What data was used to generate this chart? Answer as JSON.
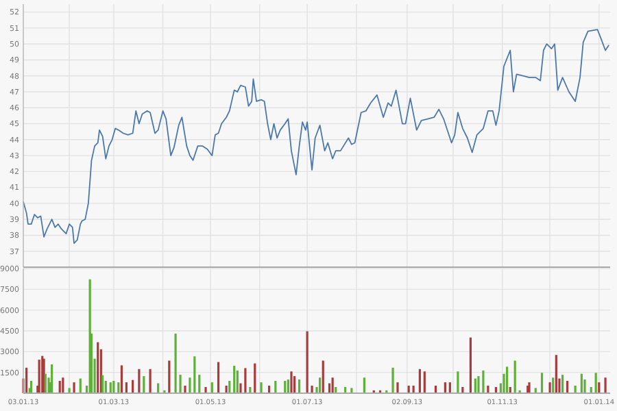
{
  "chart_data": [
    {
      "type": "line",
      "color": "#4a78ad",
      "grid": true,
      "tick_labels": "y",
      "xlim": [
        "2013-01-03",
        "2014-01-08"
      ],
      "xticks": [
        {
          "value": "2013-01-03",
          "label": null
        },
        {
          "value": "2013-02-01",
          "label": null
        },
        {
          "value": "2013-03-01",
          "label": null
        },
        {
          "value": "2013-04-01",
          "label": null
        },
        {
          "value": "2013-05-01",
          "label": null
        },
        {
          "value": "2013-06-01",
          "label": null
        },
        {
          "value": "2013-07-01",
          "label": null
        },
        {
          "value": "2013-08-01",
          "label": null
        },
        {
          "value": "2013-09-02",
          "label": null
        },
        {
          "value": "2013-10-01",
          "label": null
        },
        {
          "value": "2013-11-01",
          "label": null
        },
        {
          "value": "2013-12-01",
          "label": null
        },
        {
          "value": "2014-01-01",
          "label": null
        }
      ],
      "ylim": [
        36,
        52.5
      ],
      "yticks": [
        37,
        38,
        39,
        40,
        41,
        42,
        43,
        44,
        45,
        46,
        47,
        48,
        49,
        50,
        51,
        52
      ],
      "x": [
        "2013-01-03",
        "2013-01-05",
        "2013-01-06",
        "2013-01-08",
        "2013-01-10",
        "2013-01-12",
        "2013-01-14",
        "2013-01-16",
        "2013-01-18",
        "2013-01-21",
        "2013-01-23",
        "2013-01-25",
        "2013-01-27",
        "2013-01-30",
        "2013-02-01",
        "2013-02-03",
        "2013-02-04",
        "2013-02-06",
        "2013-02-08",
        "2013-02-09",
        "2013-02-11",
        "2013-02-13",
        "2013-02-15",
        "2013-02-17",
        "2013-02-19",
        "2013-02-20",
        "2013-02-22",
        "2013-02-24",
        "2013-02-26",
        "2013-02-28",
        "2013-03-02",
        "2013-03-04",
        "2013-03-07",
        "2013-03-10",
        "2013-03-13",
        "2013-03-15",
        "2013-03-17",
        "2013-03-19",
        "2013-03-22",
        "2013-03-24",
        "2013-03-27",
        "2013-03-29",
        "2013-04-01",
        "2013-04-03",
        "2013-04-06",
        "2013-04-08",
        "2013-04-11",
        "2013-04-13",
        "2013-04-16",
        "2013-04-18",
        "2013-04-20",
        "2013-04-23",
        "2013-04-26",
        "2013-04-29",
        "2013-05-02",
        "2013-05-04",
        "2013-05-06",
        "2013-05-08",
        "2013-05-11",
        "2013-05-13",
        "2013-05-16",
        "2013-05-18",
        "2013-05-20",
        "2013-05-23",
        "2013-05-25",
        "2013-05-27",
        "2013-05-28",
        "2013-05-30",
        "2013-06-02",
        "2013-06-04",
        "2013-06-06",
        "2013-06-08",
        "2013-06-10",
        "2013-06-12",
        "2013-06-14",
        "2013-06-17",
        "2013-06-19",
        "2013-06-21",
        "2013-06-24",
        "2013-06-26",
        "2013-06-28",
        "2013-06-30",
        "2013-07-01",
        "2013-07-04",
        "2013-07-06",
        "2013-07-09",
        "2013-07-12",
        "2013-07-14",
        "2013-07-17",
        "2013-07-19",
        "2013-07-22",
        "2013-07-27",
        "2013-07-29",
        "2013-07-31",
        "2013-08-04",
        "2013-08-07",
        "2013-08-10",
        "2013-08-14",
        "2013-08-18",
        "2013-08-21",
        "2013-08-23",
        "2013-08-26",
        "2013-08-30",
        "2013-09-01",
        "2013-09-04",
        "2013-09-08",
        "2013-09-11",
        "2013-09-15",
        "2013-09-19",
        "2013-09-22",
        "2013-09-25",
        "2013-09-30",
        "2013-10-02",
        "2013-10-04",
        "2013-10-07",
        "2013-10-10",
        "2013-10-13",
        "2013-10-16",
        "2013-10-20",
        "2013-10-23",
        "2013-10-26",
        "2013-10-28",
        "2013-10-30",
        "2013-11-02",
        "2013-11-06",
        "2013-11-08",
        "2013-11-10",
        "2013-11-14",
        "2013-11-18",
        "2013-11-22",
        "2013-11-25",
        "2013-11-27",
        "2013-11-29",
        "2013-12-02",
        "2013-12-04",
        "2013-12-06",
        "2013-12-09",
        "2013-12-13",
        "2013-12-17",
        "2013-12-20",
        "2013-12-22",
        "2013-12-25",
        "2013-12-31",
        "2014-01-02",
        "2014-01-05",
        "2014-01-07"
      ],
      "values": [
        40.1,
        39.4,
        38.7,
        38.7,
        39.3,
        39.1,
        39.2,
        37.9,
        38.4,
        39.0,
        38.5,
        38.7,
        38.4,
        38.1,
        38.7,
        38.5,
        37.5,
        37.7,
        38.7,
        38.9,
        39.0,
        40.0,
        42.7,
        43.6,
        43.8,
        44.6,
        44.2,
        42.8,
        43.6,
        44.0,
        44.7,
        44.6,
        44.4,
        44.3,
        44.4,
        45.8,
        45.0,
        45.6,
        45.8,
        45.7,
        44.4,
        44.6,
        45.8,
        45.3,
        43.0,
        43.5,
        44.9,
        45.4,
        43.6,
        43.0,
        42.7,
        43.6,
        43.6,
        43.4,
        43.0,
        44.3,
        44.4,
        45.0,
        45.4,
        45.8,
        47.1,
        47.0,
        47.4,
        47.3,
        46.1,
        46.4,
        47.8,
        46.4,
        46.5,
        46.4,
        45.0,
        44.0,
        45.0,
        44.1,
        44.6,
        45.0,
        45.3,
        43.3,
        41.8,
        43.6,
        45.1,
        44.6,
        45.1,
        42.1,
        44.1,
        44.9,
        43.3,
        43.8,
        42.8,
        43.3,
        43.3,
        44.1,
        43.7,
        43.8,
        45.7,
        45.8,
        46.3,
        46.8,
        45.4,
        46.3,
        46.1,
        47.1,
        45.0,
        45.0,
        46.6,
        44.6,
        45.2,
        45.3,
        45.4,
        45.9,
        45.3,
        43.8,
        44.3,
        45.7,
        44.7,
        44.1,
        43.2,
        44.3,
        44.7,
        45.8,
        45.8,
        44.9,
        45.8,
        48.6,
        49.6,
        47.0,
        48.1,
        48.0,
        47.9,
        47.9,
        47.7,
        49.6,
        50.0,
        49.7,
        50.0,
        47.1,
        47.9,
        47.0,
        46.4,
        47.9,
        50.1,
        50.8,
        50.9,
        50.4,
        49.6,
        49.9
      ]
    },
    {
      "type": "bar",
      "grid": true,
      "xlim": [
        "2013-01-03",
        "2014-01-08"
      ],
      "xticks": [
        {
          "value": "2013-01-03",
          "label": "03.01.13"
        },
        {
          "value": "2013-02-01",
          "label": null
        },
        {
          "value": "2013-03-01",
          "label": "01.03.13"
        },
        {
          "value": "2013-04-01",
          "label": null
        },
        {
          "value": "2013-05-01",
          "label": "01.05.13"
        },
        {
          "value": "2013-06-01",
          "label": null
        },
        {
          "value": "2013-07-01",
          "label": "01.07.13"
        },
        {
          "value": "2013-08-01",
          "label": null
        },
        {
          "value": "2013-09-02",
          "label": "02.09.13"
        },
        {
          "value": "2013-10-01",
          "label": null
        },
        {
          "value": "2013-11-01",
          "label": "01.11.13"
        },
        {
          "value": "2013-12-01",
          "label": null
        },
        {
          "value": "2014-01-01",
          "label": "01.01.14"
        }
      ],
      "ylim": [
        0,
        9000
      ],
      "yticks": [
        1500,
        3000,
        4500,
        6000,
        7500,
        9000
      ],
      "x": [
        "2013-01-03",
        "2013-01-05",
        "2013-01-07",
        "2013-01-08",
        "2013-01-12",
        "2013-01-13",
        "2013-01-15",
        "2013-01-16",
        "2013-01-17",
        "2013-01-19",
        "2013-01-20",
        "2013-01-21",
        "2013-01-26",
        "2013-01-28",
        "2013-02-01",
        "2013-02-04",
        "2013-02-08",
        "2013-02-12",
        "2013-02-14",
        "2013-02-15",
        "2013-02-17",
        "2013-02-19",
        "2013-02-21",
        "2013-02-22",
        "2013-02-24",
        "2013-02-27",
        "2013-03-01",
        "2013-03-04",
        "2013-03-06",
        "2013-03-09",
        "2013-03-13",
        "2013-03-17",
        "2013-03-20",
        "2013-03-24",
        "2013-03-29",
        "2013-04-02",
        "2013-04-05",
        "2013-04-09",
        "2013-04-12",
        "2013-04-15",
        "2013-04-18",
        "2013-04-21",
        "2013-04-24",
        "2013-04-28",
        "2013-05-02",
        "2013-05-06",
        "2013-05-11",
        "2013-05-13",
        "2013-05-16",
        "2013-05-18",
        "2013-05-20",
        "2013-05-23",
        "2013-05-26",
        "2013-05-29",
        "2013-06-02",
        "2013-06-07",
        "2013-06-11",
        "2013-06-17",
        "2013-06-19",
        "2013-06-21",
        "2013-06-23",
        "2013-06-26",
        "2013-07-01",
        "2013-07-04",
        "2013-07-07",
        "2013-07-09",
        "2013-07-11",
        "2013-07-15",
        "2013-07-17",
        "2013-07-19",
        "2013-07-25",
        "2013-07-29",
        "2013-08-06",
        "2013-08-12",
        "2013-08-16",
        "2013-08-20",
        "2013-08-24",
        "2013-08-27",
        "2013-09-03",
        "2013-09-06",
        "2013-09-10",
        "2013-09-13",
        "2013-09-20",
        "2013-09-26",
        "2013-09-29",
        "2013-10-04",
        "2013-10-07",
        "2013-10-12",
        "2013-10-15",
        "2013-10-17",
        "2013-10-20",
        "2013-10-23",
        "2013-10-28",
        "2013-10-31",
        "2013-11-02",
        "2013-11-04",
        "2013-11-06",
        "2013-11-09",
        "2013-11-12",
        "2013-11-17",
        "2013-11-18",
        "2013-11-22",
        "2013-11-26",
        "2013-12-01",
        "2013-12-03",
        "2013-12-05",
        "2013-12-07",
        "2013-12-09",
        "2013-12-12",
        "2013-12-17",
        "2013-12-21",
        "2013-12-23",
        "2013-12-27",
        "2013-12-30",
        "2014-01-01",
        "2014-01-05"
      ],
      "values": [
        1060,
        1840,
        375,
        890,
        545,
        2420,
        2690,
        2490,
        1400,
        1125,
        785,
        2080,
        890,
        1125,
        375,
        785,
        1060,
        545,
        8220,
        4300,
        2490,
        3680,
        3170,
        1300,
        890,
        785,
        890,
        785,
        2010,
        785,
        955,
        1740,
        1230,
        1740,
        715,
        205,
        2350,
        4300,
        1330,
        545,
        1125,
        2660,
        1330,
        445,
        785,
        2250,
        545,
        890,
        1980,
        1640,
        715,
        1810,
        445,
        2150,
        785,
        545,
        890,
        890,
        990,
        1570,
        1230,
        990,
        4470,
        545,
        445,
        1125,
        2350,
        715,
        1125,
        445,
        445,
        375,
        1125,
        205,
        205,
        205,
        1840,
        785,
        545,
        545,
        1740,
        1570,
        545,
        785,
        785,
        1570,
        445,
        4020,
        1060,
        1230,
        1640,
        545,
        445,
        715,
        1400,
        1910,
        445,
        2350,
        205,
        545,
        785,
        375,
        1470,
        785,
        1125,
        2760,
        1060,
        1330,
        890,
        545,
        1400,
        990,
        445,
        1470,
        785,
        1125
      ],
      "colors": [
        "#a83c3c",
        "#a83c3c",
        "#5fb03a",
        "#5fb03a",
        "#a83c3c",
        "#a83c3c",
        "#a83c3c",
        "#a83c3c",
        "#5fb03a",
        "#5fb03a",
        "#5fb03a",
        "#5fb03a",
        "#a83c3c",
        "#a83c3c",
        "#5fb03a",
        "#a83c3c",
        "#5fb03a",
        "#5fb03a",
        "#5fb03a",
        "#5fb03a",
        "#5fb03a",
        "#a83c3c",
        "#a83c3c",
        "#5fb03a",
        "#5fb03a",
        "#5fb03a",
        "#5fb03a",
        "#5fb03a",
        "#a83c3c",
        "#a83c3c",
        "#a83c3c",
        "#a83c3c",
        "#5fb03a",
        "#a83c3c",
        "#5fb03a",
        "#5fb03a",
        "#a83c3c",
        "#5fb03a",
        "#5fb03a",
        "#a83c3c",
        "#5fb03a",
        "#5fb03a",
        "#5fb03a",
        "#a83c3c",
        "#5fb03a",
        "#a83c3c",
        "#a83c3c",
        "#5fb03a",
        "#5fb03a",
        "#5fb03a",
        "#a83c3c",
        "#a83c3c",
        "#5fb03a",
        "#a83c3c",
        "#5fb03a",
        "#a83c3c",
        "#5fb03a",
        "#5fb03a",
        "#5fb03a",
        "#a83c3c",
        "#a83c3c",
        "#5fb03a",
        "#a83c3c",
        "#a83c3c",
        "#5fb03a",
        "#5fb03a",
        "#a83c3c",
        "#a83c3c",
        "#a83c3c",
        "#5fb03a",
        "#5fb03a",
        "#5fb03a",
        "#5fb03a",
        "#a83c3c",
        "#a83c3c",
        "#5fb03a",
        "#5fb03a",
        "#a83c3c",
        "#a83c3c",
        "#a83c3c",
        "#a83c3c",
        "#a83c3c",
        "#a83c3c",
        "#a83c3c",
        "#a83c3c",
        "#5fb03a",
        "#a83c3c",
        "#a83c3c",
        "#5fb03a",
        "#5fb03a",
        "#5fb03a",
        "#a83c3c",
        "#a83c3c",
        "#5fb03a",
        "#5fb03a",
        "#5fb03a",
        "#a83c3c",
        "#5fb03a",
        "#5fb03a",
        "#a83c3c",
        "#a83c3c",
        "#5fb03a",
        "#5fb03a",
        "#a83c3c",
        "#5fb03a",
        "#a83c3c",
        "#a83c3c",
        "#5fb03a",
        "#a83c3c",
        "#5fb03a",
        "#5fb03a",
        "#5fb03a",
        "#5fb03a",
        "#5fb03a",
        "#a83c3c",
        "#a83c3c"
      ]
    }
  ]
}
